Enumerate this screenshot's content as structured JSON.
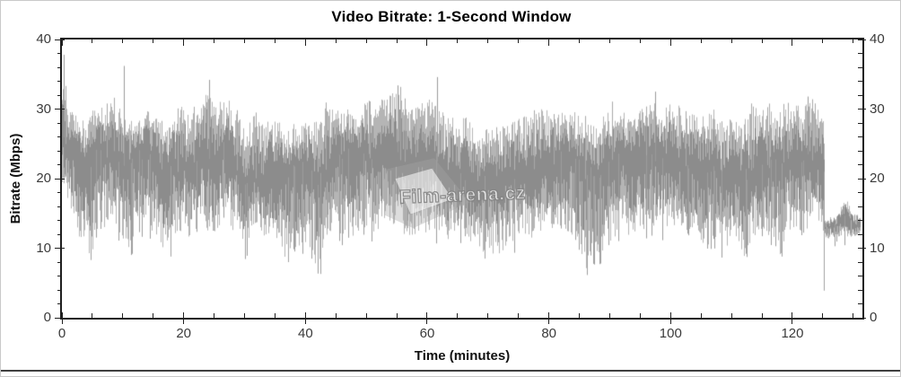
{
  "watermark": {
    "text": "Film-arena.cz"
  },
  "chart_data": {
    "type": "line",
    "title": "Video Bitrate: 1-Second Window",
    "xlabel": "Time (minutes)",
    "ylabel": "Bitrate (Mbps)",
    "xlim": [
      0,
      131.5
    ],
    "ylim": [
      0,
      40
    ],
    "x_major_ticks": [
      0,
      20,
      40,
      60,
      80,
      100,
      120
    ],
    "x_minor_step": 5,
    "y_major_ticks": [
      0,
      10,
      20,
      30,
      40
    ],
    "y_minor_step": 2,
    "grid": false,
    "legend": "none",
    "axis_color": "#1f1f1f",
    "line_color": "#8c8c8c",
    "line_color_light": "#b5b5b5",
    "series_name": "video bitrate (Mbps), 1-second window",
    "sample_interval_minutes": 1,
    "end_time_minutes": 131.15,
    "credits_drop_time_minutes": 125.2,
    "per_minute_avg": [
      27,
      24,
      23,
      22,
      21,
      22,
      24,
      23,
      24,
      23,
      22,
      21,
      22,
      22,
      23,
      22,
      21,
      21,
      22,
      22,
      23,
      22,
      23,
      24,
      23,
      22,
      24,
      25,
      23,
      22,
      21,
      22,
      22,
      21,
      22,
      21,
      21,
      20,
      21,
      21,
      22,
      21,
      20,
      22,
      22,
      23,
      22,
      23,
      22,
      22,
      23,
      22,
      23,
      24,
      23,
      24,
      23,
      22,
      22,
      23,
      22,
      23,
      22,
      21,
      22,
      21,
      22,
      21,
      20,
      20,
      21,
      20,
      20,
      21,
      21,
      22,
      22,
      22,
      23,
      22,
      23,
      22,
      23,
      22,
      22,
      21,
      20,
      21,
      20,
      21,
      22,
      22,
      23,
      22,
      22,
      23,
      22,
      23,
      22,
      23,
      24,
      23,
      23,
      22,
      22,
      22,
      21,
      22,
      21,
      21,
      22,
      22,
      21,
      22,
      22,
      23,
      22,
      22,
      22,
      23,
      22,
      23,
      23,
      24,
      23,
      22.5,
      12.5,
      12.5,
      13,
      13,
      12.5,
      13
    ],
    "per_minute_lo": [
      19,
      15,
      13,
      11,
      9,
      10,
      14,
      13,
      15,
      13,
      11,
      10,
      12,
      13,
      14,
      12,
      11,
      9,
      10,
      12,
      13,
      11,
      13,
      14,
      12,
      11,
      14,
      15,
      12,
      11,
      10,
      12,
      13,
      11,
      12,
      11,
      9,
      8,
      10,
      9,
      11,
      9,
      7,
      11,
      12,
      13,
      12,
      13,
      11,
      12,
      13,
      12,
      13,
      14,
      13,
      14,
      12,
      11,
      12,
      13,
      12,
      13,
      12,
      11,
      12,
      11,
      12,
      11,
      10,
      9,
      10,
      9,
      9,
      10,
      11,
      12,
      12,
      11,
      13,
      12,
      13,
      12,
      13,
      11,
      12,
      10,
      7,
      10,
      8,
      10,
      11,
      12,
      13,
      12,
      11,
      13,
      12,
      13,
      12,
      13,
      14,
      13,
      13,
      12,
      12,
      11,
      10,
      12,
      11,
      10,
      12,
      11,
      9,
      11,
      12,
      13,
      12,
      11,
      9,
      13,
      12,
      13,
      12,
      14,
      14,
      12,
      11.2,
      11.3,
      11.5,
      11.5,
      11.3,
      12
    ],
    "per_minute_hi": [
      35,
      31,
      30,
      29,
      28,
      30,
      31,
      30,
      31,
      30,
      30,
      28,
      29,
      28,
      30,
      29,
      28,
      27,
      29,
      30,
      31,
      29,
      30,
      32,
      33,
      30,
      31,
      32,
      30,
      29,
      28,
      29,
      29,
      28,
      29,
      28,
      28,
      27,
      28,
      28,
      29,
      29,
      28,
      30,
      30,
      30,
      29,
      30,
      29,
      30,
      31,
      30,
      31,
      32,
      33,
      33,
      32,
      30,
      30,
      31,
      31,
      32,
      30,
      29,
      29,
      28,
      29,
      28,
      27,
      26,
      28,
      27,
      27,
      28,
      28,
      29,
      29,
      29,
      30,
      30,
      30,
      29,
      30,
      29,
      30,
      29,
      28,
      28,
      28,
      29,
      30,
      30,
      30,
      29,
      29,
      30,
      30,
      31,
      30,
      30,
      31,
      31,
      30,
      29,
      30,
      29,
      29,
      30,
      28,
      28,
      29,
      29,
      29,
      30,
      30,
      30,
      30,
      29,
      30,
      30,
      30,
      31,
      31,
      31,
      30,
      29,
      14,
      14.5,
      16.5,
      17,
      14,
      14.5
    ],
    "spikes": [
      {
        "t": 0.35,
        "v": 37.8
      },
      {
        "t": 10.2,
        "v": 36.2
      },
      {
        "t": 24.2,
        "v": 34.2
      },
      {
        "t": 55.2,
        "v": 33.4
      },
      {
        "t": 61.6,
        "v": 34.6
      },
      {
        "t": 97.5,
        "v": 32.5
      },
      {
        "t": 122.5,
        "v": 31.8
      }
    ],
    "dips": [
      {
        "t": 4.7,
        "v": 8.3
      },
      {
        "t": 17.8,
        "v": 8.8
      },
      {
        "t": 37.2,
        "v": 8.0
      },
      {
        "t": 42.4,
        "v": 6.3
      },
      {
        "t": 69.4,
        "v": 8.5
      },
      {
        "t": 86.2,
        "v": 6.8
      },
      {
        "t": 88.5,
        "v": 7.8
      },
      {
        "t": 112.4,
        "v": 9.2
      },
      {
        "t": 118.2,
        "v": 8.8
      },
      {
        "t": 125.15,
        "v": 3.9
      }
    ]
  }
}
